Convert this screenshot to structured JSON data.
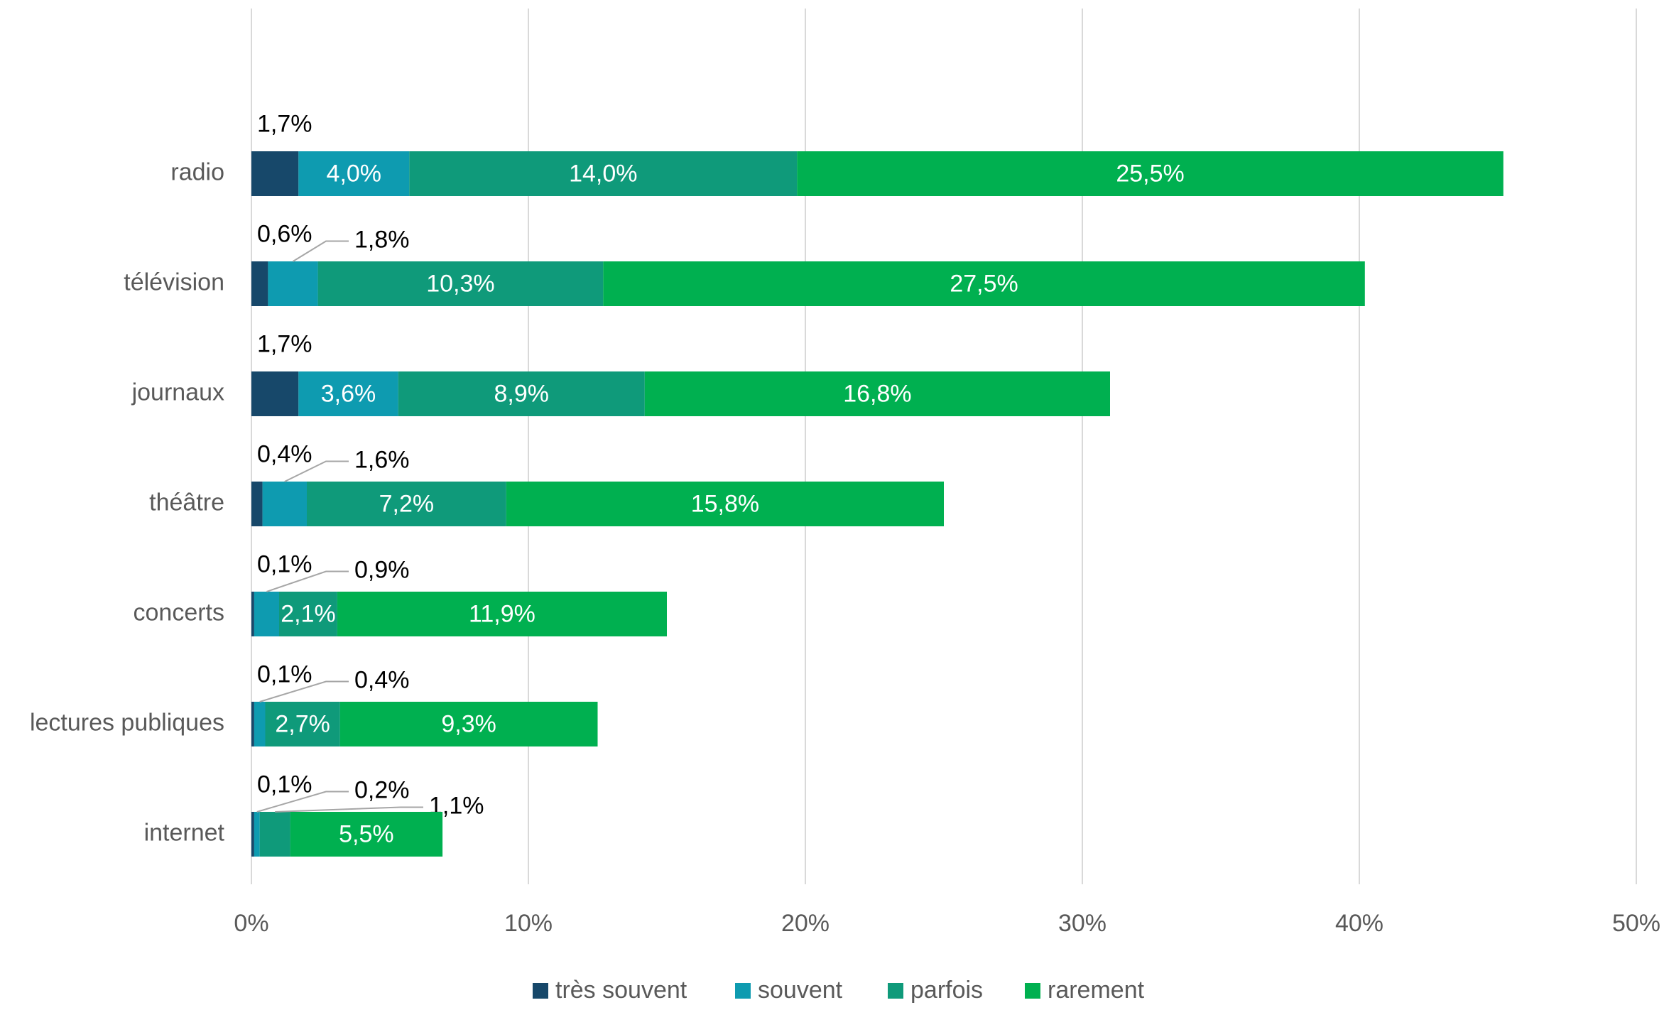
{
  "chart_data": {
    "type": "stacked-bar-horizontal",
    "categories": [
      "radio",
      "télévision",
      "journaux",
      "théâtre",
      "concerts",
      "lectures publiques",
      "internet"
    ],
    "series": [
      {
        "name": "très souvent",
        "color": "#17486a",
        "values": [
          1.7,
          0.6,
          1.7,
          0.4,
          0.1,
          0.1,
          0.1
        ],
        "value_labels": [
          "1,7%",
          "0,6%",
          "1,7%",
          "0,4%",
          "0,1%",
          "0,1%",
          "0,1%"
        ]
      },
      {
        "name": "souvent",
        "color": "#0e9bb0",
        "values": [
          4.0,
          1.8,
          3.6,
          1.6,
          0.9,
          0.4,
          0.2
        ],
        "value_labels": [
          "4,0%",
          "1,8%",
          "3,6%",
          "1,6%",
          "0,9%",
          "0,4%",
          "0,2%"
        ]
      },
      {
        "name": "parfois",
        "color": "#0f9a7a",
        "values": [
          14.0,
          10.3,
          8.9,
          7.2,
          2.1,
          2.7,
          1.1
        ],
        "value_labels": [
          "14,0%",
          "10,3%",
          "8,9%",
          "7,2%",
          "2,1%",
          "2,7%",
          "1,1%"
        ]
      },
      {
        "name": "rarement",
        "color": "#00b050",
        "values": [
          25.5,
          27.5,
          16.8,
          15.8,
          11.9,
          9.3,
          5.5
        ],
        "value_labels": [
          "25,5%",
          "27,5%",
          "16,8%",
          "15,8%",
          "11,9%",
          "9,3%",
          "5,5%"
        ]
      }
    ],
    "xlim": [
      0,
      50
    ],
    "xticks": [
      {
        "value": 0,
        "label": "0%"
      },
      {
        "value": 10,
        "label": "10%"
      },
      {
        "value": 20,
        "label": "20%"
      },
      {
        "value": 30,
        "label": "30%"
      },
      {
        "value": 40,
        "label": "40%"
      },
      {
        "value": 50,
        "label": "50%"
      }
    ],
    "grid": true,
    "legend": "bottom"
  }
}
